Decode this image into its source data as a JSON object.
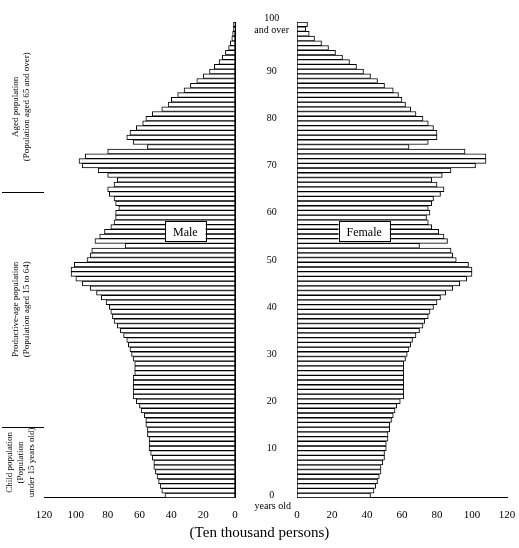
{
  "chart_data": {
    "type": "bar",
    "orientation": "horizontal",
    "grid": false,
    "x_label": "(Ten thousand persons)",
    "y_label": "years old",
    "xlim": [
      0,
      120
    ],
    "xticks": [
      0,
      20,
      40,
      60,
      80,
      100,
      120
    ],
    "categories": [
      "0",
      null,
      null,
      null,
      null,
      null,
      null,
      null,
      null,
      null,
      "10",
      null,
      null,
      null,
      null,
      null,
      null,
      null,
      null,
      null,
      "20",
      null,
      null,
      null,
      null,
      null,
      null,
      null,
      null,
      null,
      "30",
      null,
      null,
      null,
      null,
      null,
      null,
      null,
      null,
      null,
      "40",
      null,
      null,
      null,
      null,
      null,
      null,
      null,
      null,
      null,
      "50",
      null,
      null,
      null,
      null,
      null,
      null,
      null,
      null,
      null,
      "60",
      null,
      null,
      null,
      null,
      null,
      null,
      null,
      null,
      null,
      "70",
      null,
      null,
      null,
      null,
      null,
      null,
      null,
      null,
      null,
      "80",
      null,
      null,
      null,
      null,
      null,
      null,
      null,
      null,
      null,
      "90",
      null,
      null,
      null,
      null,
      null,
      null,
      null,
      null,
      null,
      "100 and over"
    ],
    "series": [
      {
        "name": "Male",
        "color": "#ffffff",
        "values": [
          44,
          46,
          47,
          48,
          49,
          50,
          51,
          51,
          52,
          53,
          54,
          54,
          54,
          55,
          55,
          56,
          56,
          57,
          59,
          60,
          62,
          64,
          64,
          64,
          64,
          64,
          63,
          63,
          63,
          64,
          65,
          66,
          67,
          68,
          70,
          72,
          74,
          76,
          77,
          78,
          79,
          81,
          84,
          87,
          91,
          96,
          100,
          103,
          103,
          101,
          93,
          91,
          90,
          69,
          88,
          85,
          82,
          78,
          76,
          75,
          75,
          73,
          75,
          76,
          79,
          80,
          76,
          74,
          80,
          86,
          96,
          98,
          94,
          80,
          55,
          64,
          68,
          66,
          62,
          58,
          56,
          52,
          46,
          42,
          40,
          36,
          32,
          28,
          24,
          20,
          16,
          13,
          10,
          8,
          6,
          4,
          3,
          2,
          1.5,
          1,
          1
        ]
      },
      {
        "name": "Female",
        "color": "#ffffff",
        "values": [
          42,
          44,
          45,
          46,
          47,
          48,
          48,
          49,
          50,
          50,
          51,
          51,
          52,
          52,
          53,
          53,
          54,
          55,
          56,
          57,
          59,
          61,
          61,
          61,
          61,
          61,
          61,
          61,
          61,
          62,
          63,
          64,
          65,
          66,
          68,
          70,
          72,
          73,
          75,
          76,
          78,
          80,
          82,
          85,
          89,
          93,
          97,
          100,
          100,
          98,
          91,
          89,
          88,
          70,
          86,
          84,
          81,
          77,
          75,
          74,
          76,
          75,
          77,
          78,
          82,
          84,
          80,
          77,
          83,
          88,
          102,
          108,
          108,
          96,
          64,
          75,
          80,
          80,
          78,
          75,
          72,
          68,
          65,
          62,
          60,
          58,
          55,
          50,
          46,
          42,
          38,
          34,
          30,
          26,
          22,
          18,
          14,
          10,
          7,
          5,
          6
        ]
      }
    ],
    "age_groups": [
      {
        "start": 0,
        "label": [
          "Child population",
          "(Population",
          "under 15 years old)"
        ]
      },
      {
        "start": 15,
        "label": [
          "Productive-age population",
          "(Population aged 15 to 64)"
        ]
      },
      {
        "start": 65,
        "label": [
          "Aged population",
          "(Population aged 65 and over)"
        ]
      }
    ]
  }
}
